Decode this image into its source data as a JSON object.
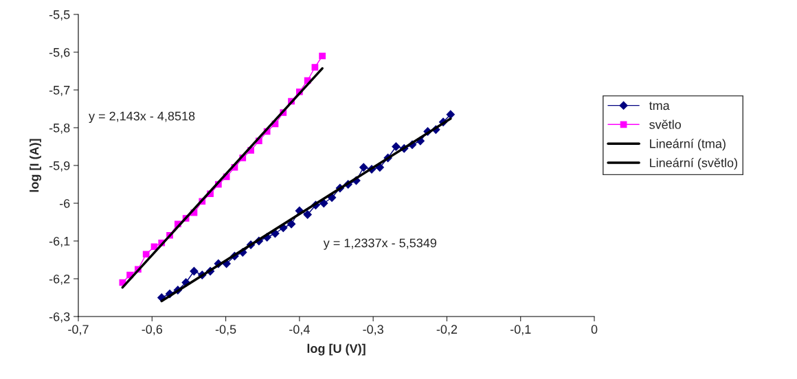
{
  "chart_data": {
    "type": "line",
    "xlabel": "log [U (V)]",
    "ylabel": "log [I (A)]",
    "xlim": [
      -0.7,
      0
    ],
    "ylim": [
      -6.3,
      -5.5
    ],
    "xticks": [
      {
        "value": -0.7,
        "label": "-0,7"
      },
      {
        "value": -0.6,
        "label": "-0,6"
      },
      {
        "value": -0.5,
        "label": "-0,5"
      },
      {
        "value": -0.4,
        "label": "-0,4"
      },
      {
        "value": -0.3,
        "label": "-0,3"
      },
      {
        "value": -0.2,
        "label": "-0,2"
      },
      {
        "value": -0.1,
        "label": "-0,1"
      },
      0
    ],
    "yticks": [
      {
        "value": -6.3,
        "label": "-6,3"
      },
      {
        "value": -6.2,
        "label": "-6,2"
      },
      {
        "value": -6.1,
        "label": "-6,1"
      },
      -6,
      {
        "value": -5.9,
        "label": "-5,9"
      },
      {
        "value": -5.8,
        "label": "-5,8"
      },
      {
        "value": -5.7,
        "label": "-5,7"
      },
      {
        "value": -5.6,
        "label": "-5,6"
      },
      {
        "value": -5.5,
        "label": "-5,5"
      }
    ],
    "grid": false,
    "legend": "right",
    "series": [
      {
        "name": "tma",
        "color": "#000080",
        "marker": "diamond",
        "x": [
          -0.587,
          -0.576,
          -0.565,
          -0.554,
          -0.543,
          -0.532,
          -0.521,
          -0.51,
          -0.499,
          -0.488,
          -0.477,
          -0.466,
          -0.455,
          -0.444,
          -0.433,
          -0.422,
          -0.411,
          -0.4,
          -0.389,
          -0.378,
          -0.367,
          -0.356,
          -0.345,
          -0.334,
          -0.323,
          -0.313,
          -0.302,
          -0.291,
          -0.28,
          -0.269,
          -0.258,
          -0.247,
          -0.236,
          -0.226,
          -0.215,
          -0.205,
          -0.195
        ],
        "values": [
          -6.25,
          -6.24,
          -6.23,
          -6.21,
          -6.18,
          -6.19,
          -6.18,
          -6.16,
          -6.16,
          -6.14,
          -6.13,
          -6.11,
          -6.1,
          -6.09,
          -6.08,
          -6.065,
          -6.055,
          -6.02,
          -6.03,
          -6.005,
          -6.0,
          -5.985,
          -5.96,
          -5.95,
          -5.94,
          -5.905,
          -5.91,
          -5.905,
          -5.88,
          -5.85,
          -5.855,
          -5.845,
          -5.835,
          -5.81,
          -5.805,
          -5.785,
          -5.765
        ]
      },
      {
        "name": "světlo",
        "color": "#ff00ff",
        "marker": "square",
        "x": [
          -0.64,
          -0.63,
          -0.619,
          -0.608,
          -0.597,
          -0.587,
          -0.576,
          -0.565,
          -0.554,
          -0.543,
          -0.532,
          -0.521,
          -0.51,
          -0.499,
          -0.488,
          -0.477,
          -0.466,
          -0.455,
          -0.444,
          -0.433,
          -0.422,
          -0.411,
          -0.4,
          -0.389,
          -0.379,
          -0.369
        ],
        "values": [
          -6.21,
          -6.19,
          -6.175,
          -6.135,
          -6.115,
          -6.105,
          -6.085,
          -6.055,
          -6.04,
          -6.025,
          -5.995,
          -5.975,
          -5.95,
          -5.93,
          -5.905,
          -5.88,
          -5.86,
          -5.835,
          -5.81,
          -5.79,
          -5.76,
          -5.73,
          -5.705,
          -5.675,
          -5.64,
          -5.61
        ]
      },
      {
        "name": "Lineární (tma)",
        "color": "#000000",
        "marker": "none",
        "x": [
          -0.587,
          -0.195
        ],
        "values": [
          -6.259,
          -5.776
        ]
      },
      {
        "name": "Lineární (světlo)",
        "color": "#000000",
        "marker": "none",
        "x": [
          -0.64,
          -0.369
        ],
        "values": [
          -6.223,
          -5.643
        ]
      }
    ],
    "annotations": [
      "y = 2,143x - 4,8518",
      "y = 1,2337x - 5,5349"
    ]
  }
}
